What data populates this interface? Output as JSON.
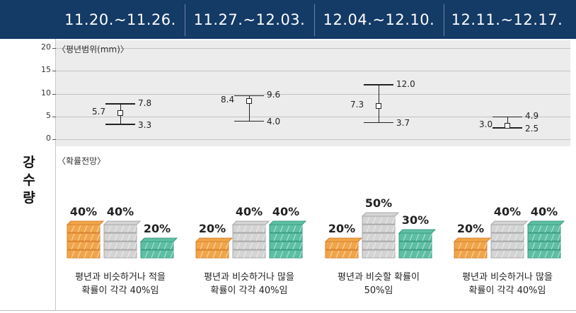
{
  "periods": [
    "11.20.~11.26.",
    "11.27.~12.03.",
    "12.04.~12.10.",
    "12.11.~12.17."
  ],
  "variable_label": [
    "강",
    "수",
    "량"
  ],
  "chart_data": [
    {
      "type": "errorbar",
      "title": "〈평년범위(mm)〉",
      "categories": [
        "11.20.~11.26.",
        "11.27.~12.03.",
        "12.04.~12.10.",
        "12.11.~12.17."
      ],
      "mean": [
        5.7,
        8.4,
        7.3,
        3.0
      ],
      "upper": [
        7.8,
        9.6,
        12.0,
        4.9
      ],
      "lower": [
        3.3,
        4.0,
        3.7,
        2.5
      ],
      "mean_labels": [
        "5.7",
        "8.4",
        "7.3",
        "3.0"
      ],
      "upper_labels": [
        "7.8",
        "9.6",
        "12.0",
        "4.9"
      ],
      "lower_labels": [
        "3.3",
        "4.0",
        "3.7",
        "2.5"
      ],
      "yticks": [
        "20",
        "15",
        "10",
        "5",
        "0"
      ],
      "ylim": [
        0,
        20
      ],
      "grid": true
    },
    {
      "type": "bar",
      "title": "〈확률전망〉",
      "categories": [
        "11.20.~11.26.",
        "11.27.~12.03.",
        "12.04.~12.10.",
        "12.11.~12.17."
      ],
      "series": [
        {
          "name": "적음",
          "values": [
            40,
            20,
            20,
            20
          ],
          "labels": [
            "40%",
            "20%",
            "20%",
            "20%"
          ]
        },
        {
          "name": "비슷",
          "values": [
            40,
            40,
            50,
            40
          ],
          "labels": [
            "40%",
            "40%",
            "50%",
            "40%"
          ]
        },
        {
          "name": "많음",
          "values": [
            20,
            40,
            30,
            40
          ],
          "labels": [
            "20%",
            "40%",
            "30%",
            "40%"
          ]
        }
      ],
      "captions": [
        [
          "평년과 비슷하거나 적을",
          "확률이 각각 40%임"
        ],
        [
          "평년과 비슷하거나 많을",
          "확률이 각각 40%임"
        ],
        [
          "평년과 비슷할 확률이",
          "50%임"
        ],
        [
          "평년과 비슷하거나 많을",
          "확률이 각각 40%임"
        ]
      ]
    }
  ],
  "colors": {
    "header": "#143a66",
    "below": "#f0a54a",
    "below_dark": "#d9822c",
    "normal": "#d4d4d4",
    "normal_dark": "#a9a9a9",
    "above": "#5dbfa3",
    "above_dark": "#3a9c82"
  }
}
